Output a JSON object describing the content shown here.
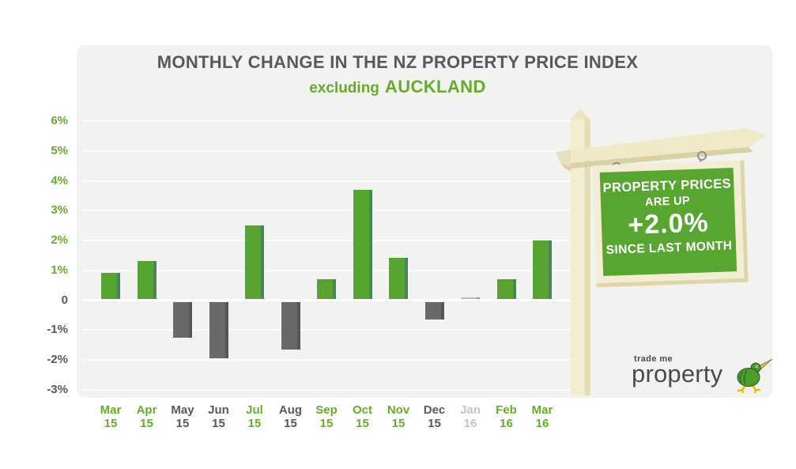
{
  "page": {
    "background": "#ffffff",
    "card_background": "#f2f2f0"
  },
  "title": {
    "text": "MONTHLY CHANGE IN THE NZ PROPERTY PRICE INDEX"
  },
  "subtitle": {
    "prefix": "excluding",
    "highlight": "AUCKLAND"
  },
  "chart_data": {
    "type": "bar",
    "title": "MONTHLY CHANGE IN THE NZ PROPERTY PRICE INDEX excluding AUCKLAND",
    "unit": "%",
    "ylim": [
      -3,
      6
    ],
    "grid": true,
    "y_ticks": [
      {
        "label": "6%",
        "value": 6,
        "tone": "pos"
      },
      {
        "label": "5%",
        "value": 5,
        "tone": "pos"
      },
      {
        "label": "4%",
        "value": 4,
        "tone": "pos"
      },
      {
        "label": "3%",
        "value": 3,
        "tone": "pos"
      },
      {
        "label": "2%",
        "value": 2,
        "tone": "pos"
      },
      {
        "label": "1%",
        "value": 1,
        "tone": "pos"
      },
      {
        "label": "0",
        "value": 0,
        "tone": "neg"
      },
      {
        "label": "-1%",
        "value": -1,
        "tone": "neg"
      },
      {
        "label": "-2%",
        "value": -2,
        "tone": "neg"
      },
      {
        "label": "-3%",
        "value": -3,
        "tone": "neg"
      }
    ],
    "categories": [
      {
        "month": "Mar",
        "year": "15"
      },
      {
        "month": "Apr",
        "year": "15"
      },
      {
        "month": "May",
        "year": "15"
      },
      {
        "month": "Jun",
        "year": "15"
      },
      {
        "month": "Jul",
        "year": "15"
      },
      {
        "month": "Aug",
        "year": "15"
      },
      {
        "month": "Sep",
        "year": "15"
      },
      {
        "month": "Oct",
        "year": "15"
      },
      {
        "month": "Nov",
        "year": "15"
      },
      {
        "month": "Dec",
        "year": "15"
      },
      {
        "month": "Jan",
        "year": "16"
      },
      {
        "month": "Feb",
        "year": "16"
      },
      {
        "month": "Mar",
        "year": "16"
      }
    ],
    "values": [
      0.9,
      1.3,
      -1.2,
      -1.9,
      2.5,
      -1.6,
      0.7,
      3.7,
      1.4,
      -0.6,
      0.0,
      0.7,
      2.0
    ],
    "bar_tones": [
      "green",
      "green",
      "gray",
      "gray",
      "green",
      "gray",
      "green",
      "green",
      "green",
      "gray",
      "neutral",
      "green",
      "green"
    ],
    "colors": {
      "positive_bar": "#57a431",
      "positive_bar_edge": "#47855c",
      "negative_bar": "#696969",
      "negative_bar_edge": "#565658",
      "neutral_bar": "#bdbdbd",
      "axis_green": "#67ab2c",
      "axis_gray": "#58595b",
      "gridline": "#ffffff"
    }
  },
  "sign": {
    "line1": "PROPERTY PRICES",
    "line2": "ARE UP",
    "value": "+2.0%",
    "line3": "SINCE LAST MONTH",
    "board_color": "#58a531",
    "frame_color": "#f3eed1"
  },
  "logo": {
    "brand_top": "trade me",
    "brand": "property"
  }
}
